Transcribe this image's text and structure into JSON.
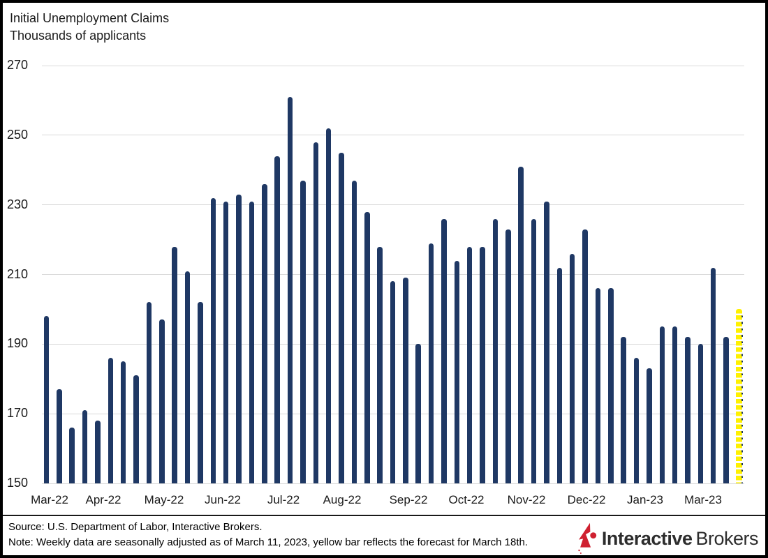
{
  "header": {
    "title": "Initial Unemployment Claims",
    "subtitle": "Thousands of applicants"
  },
  "chart_data": {
    "type": "bar",
    "title": "Initial Unemployment Claims",
    "ylabel": "Thousands of applicants",
    "ylim": [
      150,
      270
    ],
    "y_ticks": [
      270,
      250,
      230,
      210,
      190,
      170,
      150
    ],
    "grid": "horizontal-light-gray",
    "legend_position": "none",
    "x_tick_labels": [
      "Mar-22",
      "Apr-22",
      "May-22",
      "Jun-22",
      "Jul-22",
      "Aug-22",
      "Sep-22",
      "Oct-22",
      "Nov-22",
      "Dec-22",
      "Jan-23",
      "Mar-23"
    ],
    "series": [
      {
        "name": "Weekly initial claims (seasonally adjusted, through March 11, 2023)",
        "color": "#1f3864",
        "values": [
          198,
          177,
          166,
          171,
          168,
          186,
          185,
          181,
          202,
          197,
          218,
          211,
          202,
          232,
          231,
          233,
          231,
          236,
          244,
          261,
          237,
          248,
          252,
          245,
          237,
          228,
          218,
          208,
          209,
          190,
          219,
          226,
          214,
          218,
          218,
          226,
          223,
          241,
          226,
          231,
          212,
          216,
          223,
          206,
          206,
          192,
          186,
          183,
          195,
          195,
          192,
          190,
          212,
          192
        ]
      },
      {
        "name": "Forecast for March 18th (yellow bar)",
        "color": "#fff100",
        "style": "dashed",
        "values": [
          200
        ]
      }
    ]
  },
  "footer": {
    "source": "Source: U.S. Department of Labor, Interactive Brokers.",
    "note": "Note: Weekly data are seasonally adjusted as of March 11, 2023, yellow bar reflects the forecast for March 18th."
  },
  "logo": {
    "bold": "Interactive",
    "regular": "Brokers",
    "accent": "#cf2030"
  }
}
